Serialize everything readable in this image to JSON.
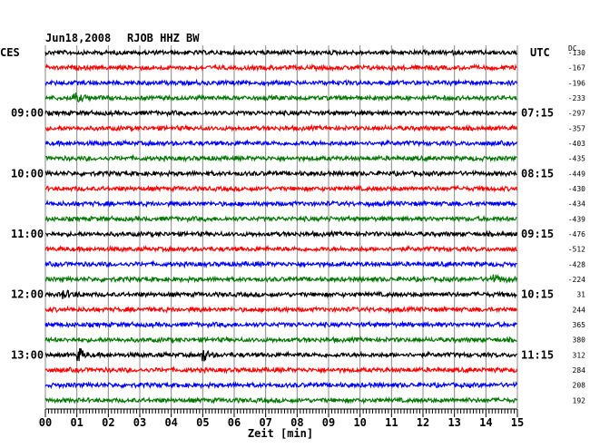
{
  "header": {
    "date": "Jun18,2008",
    "station": "RJOB HHZ BW",
    "left_tz": "CES",
    "right_tz": "UTC",
    "dc_label": "DC"
  },
  "chart_data": {
    "type": "line",
    "title": "Jun18,2008  RJOB HHZ BW",
    "xlabel": "Zeit [min]",
    "xlim": [
      0,
      15
    ],
    "x_ticks": [
      "00",
      "01",
      "02",
      "03",
      "04",
      "05",
      "06",
      "07",
      "08",
      "09",
      "10",
      "11",
      "12",
      "13",
      "14",
      "15"
    ],
    "trace_colors": [
      "#000000",
      "#ff0000",
      "#0000ff",
      "#007700"
    ],
    "left_hour_labels": [
      {
        "trace": 4,
        "label": "09:00"
      },
      {
        "trace": 8,
        "label": "10:00"
      },
      {
        "trace": 12,
        "label": "11:00"
      },
      {
        "trace": 16,
        "label": "12:00"
      },
      {
        "trace": 20,
        "label": "13:00"
      }
    ],
    "right_utc_labels": [
      {
        "trace": 4,
        "label": "07:15"
      },
      {
        "trace": 8,
        "label": "08:15"
      },
      {
        "trace": 12,
        "label": "09:15"
      },
      {
        "trace": 16,
        "label": "10:15"
      },
      {
        "trace": 20,
        "label": "11:15"
      }
    ],
    "dc_offsets": [
      "-130",
      "-167",
      "-196",
      "-233",
      "-297",
      "-357",
      "-403",
      "-435",
      "-449",
      "-430",
      "-434",
      "-439",
      "-476",
      "-512",
      "-428",
      "-224",
      "31",
      "244",
      "365",
      "380",
      "312",
      "284",
      "208",
      "192"
    ],
    "events": [
      {
        "trace": 20,
        "minute": 1.05,
        "amplitude": "large"
      },
      {
        "trace": 20,
        "minute": 5.0,
        "amplitude": "large"
      },
      {
        "trace": 16,
        "minute": 0.5,
        "amplitude": "medium"
      },
      {
        "trace": 15,
        "minute": 14.2,
        "amplitude": "medium"
      },
      {
        "trace": 3,
        "minute": 0.9,
        "amplitude": "medium"
      }
    ]
  }
}
